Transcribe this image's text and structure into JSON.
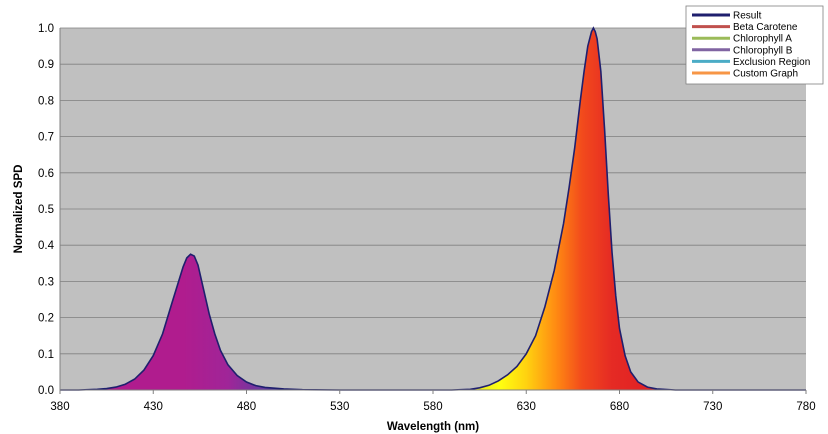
{
  "chart_data": {
    "type": "area",
    "xlabel": "Wavelength (nm)",
    "ylabel": "Normalized SPD",
    "xlim": [
      380,
      780
    ],
    "ylim": [
      0,
      1.0
    ],
    "x_ticks": [
      380,
      430,
      480,
      530,
      580,
      630,
      680,
      730,
      780
    ],
    "y_ticks": [
      "0.0",
      "0.1",
      "0.2",
      "0.3",
      "0.4",
      "0.5",
      "0.6",
      "0.7",
      "0.8",
      "0.9",
      "1.0"
    ],
    "grid": "horizontal",
    "background": "#c0c0c0",
    "legend": {
      "position": "top-right",
      "entries": [
        {
          "label": "Result",
          "color": "#1f1f6e"
        },
        {
          "label": "Beta Carotene",
          "color": "#c0504d"
        },
        {
          "label": "Chlorophyll A",
          "color": "#9bbb59"
        },
        {
          "label": "Chlorophyll B",
          "color": "#8064a2"
        },
        {
          "label": "Exclusion Region",
          "color": "#4bacc6"
        },
        {
          "label": "Custom Graph",
          "color": "#f79646"
        }
      ]
    },
    "series": [
      {
        "name": "Result",
        "color": "#1f1f6e",
        "fill": "spectral",
        "x": [
          380,
          390,
          400,
          405,
          410,
          415,
          420,
          425,
          430,
          435,
          440,
          443,
          446,
          448,
          450,
          452,
          454,
          456,
          458,
          460,
          463,
          466,
          470,
          475,
          480,
          485,
          490,
          500,
          510,
          530,
          560,
          590,
          600,
          605,
          610,
          615,
          620,
          625,
          630,
          635,
          640,
          645,
          650,
          653,
          656,
          659,
          661,
          663,
          665,
          666,
          667,
          668,
          670,
          672,
          674,
          676,
          678,
          680,
          683,
          686,
          690,
          695,
          700,
          710,
          730,
          760,
          780
        ],
        "y": [
          0.0,
          0.0,
          0.002,
          0.004,
          0.008,
          0.016,
          0.03,
          0.055,
          0.095,
          0.155,
          0.24,
          0.29,
          0.34,
          0.365,
          0.375,
          0.37,
          0.345,
          0.3,
          0.255,
          0.21,
          0.155,
          0.11,
          0.07,
          0.04,
          0.022,
          0.012,
          0.007,
          0.003,
          0.001,
          0.0,
          0.0,
          0.0,
          0.002,
          0.006,
          0.013,
          0.025,
          0.042,
          0.065,
          0.1,
          0.15,
          0.23,
          0.33,
          0.46,
          0.56,
          0.67,
          0.8,
          0.88,
          0.95,
          0.99,
          1.0,
          0.99,
          0.97,
          0.88,
          0.72,
          0.54,
          0.38,
          0.26,
          0.17,
          0.095,
          0.05,
          0.022,
          0.008,
          0.003,
          0.0,
          0.0,
          0.0,
          0.0
        ]
      }
    ]
  }
}
